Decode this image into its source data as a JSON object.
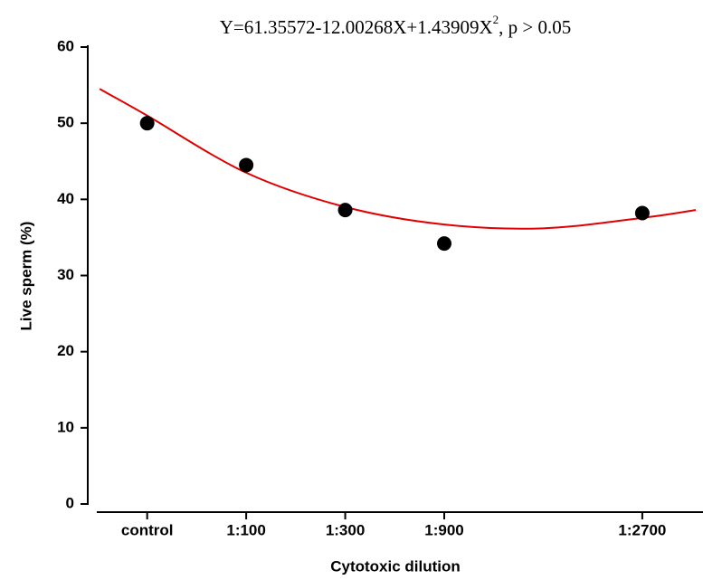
{
  "chart_data": {
    "type": "scatter",
    "title": [
      "Y=61.35572-12.00268X+1.43909X",
      "2",
      ", p > 0.05"
    ],
    "xlabel": "Cytotoxic dilution",
    "ylabel": "Live sperm (%)",
    "x": [
      1,
      2,
      3,
      4,
      6
    ],
    "values": [
      50,
      44.5,
      38.6,
      34.2,
      38.2
    ],
    "color": "#000000",
    "fit": {
      "color": "#e00000",
      "x": [
        0.52,
        1,
        2,
        3,
        4,
        5,
        6.02,
        6.54
      ],
      "values": [
        54.5,
        51,
        43.5,
        39,
        36.7,
        36.2,
        37.6,
        38.6
      ]
    },
    "xlim": [
      0.4,
      6.54
    ],
    "xticks": [
      {
        "value": 1,
        "label": "control"
      },
      {
        "value": 2,
        "label": "1:100"
      },
      {
        "value": 3,
        "label": "1:300"
      },
      {
        "value": 4,
        "label": "1:900"
      },
      {
        "value": 6,
        "label": "1:2700"
      }
    ],
    "ylim": [
      0,
      60
    ],
    "yticks": [
      0,
      10,
      20,
      30,
      40,
      50,
      60
    ]
  }
}
